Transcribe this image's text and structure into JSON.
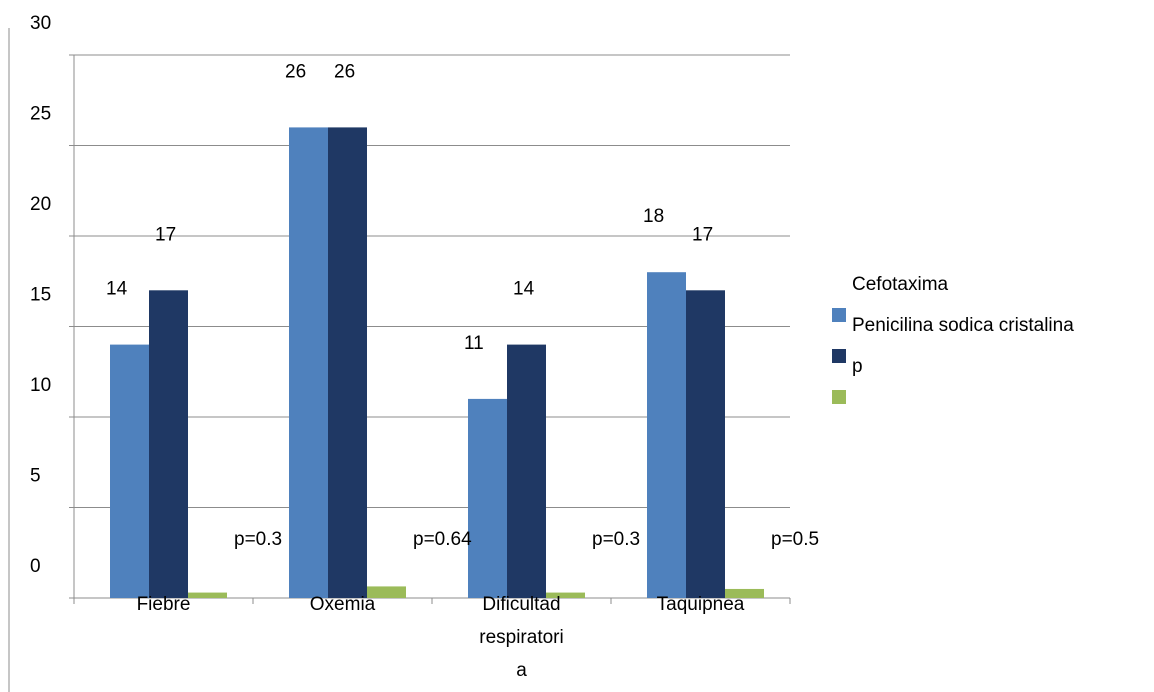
{
  "chart_data": {
    "type": "bar",
    "categories": [
      "Fiebre",
      "Oxemia",
      "Dificultad respiratoria",
      "Taquipnea"
    ],
    "category_lines": [
      [
        "Fiebre"
      ],
      [
        "Oxemia"
      ],
      [
        "Dificultad",
        "respiratori",
        "a"
      ],
      [
        "Taquipnea"
      ]
    ],
    "series": [
      {
        "name": "Cefotaxima",
        "values": [
          14,
          26,
          11,
          18
        ],
        "labels": [
          "14",
          "26",
          "11",
          "18"
        ],
        "color": "#4F81BD"
      },
      {
        "name": "Penicilina sodica cristalina",
        "values": [
          17,
          26,
          14,
          17
        ],
        "labels": [
          "17",
          "26",
          "14",
          "17"
        ],
        "color": "#1F3864"
      },
      {
        "name": "p",
        "values": [
          0.3,
          0.64,
          0.3,
          0.5
        ],
        "labels": [
          "p=0.3",
          "p=0.64",
          "p=0.3",
          "p=0.5"
        ],
        "color": "#9BBB59"
      }
    ],
    "yticks": [
      "0",
      "5",
      "10",
      "15",
      "20",
      "25",
      "30"
    ],
    "ylim": [
      0,
      30
    ],
    "grid": true,
    "legend": "right",
    "title": "",
    "xlabel": "",
    "ylabel": ""
  }
}
